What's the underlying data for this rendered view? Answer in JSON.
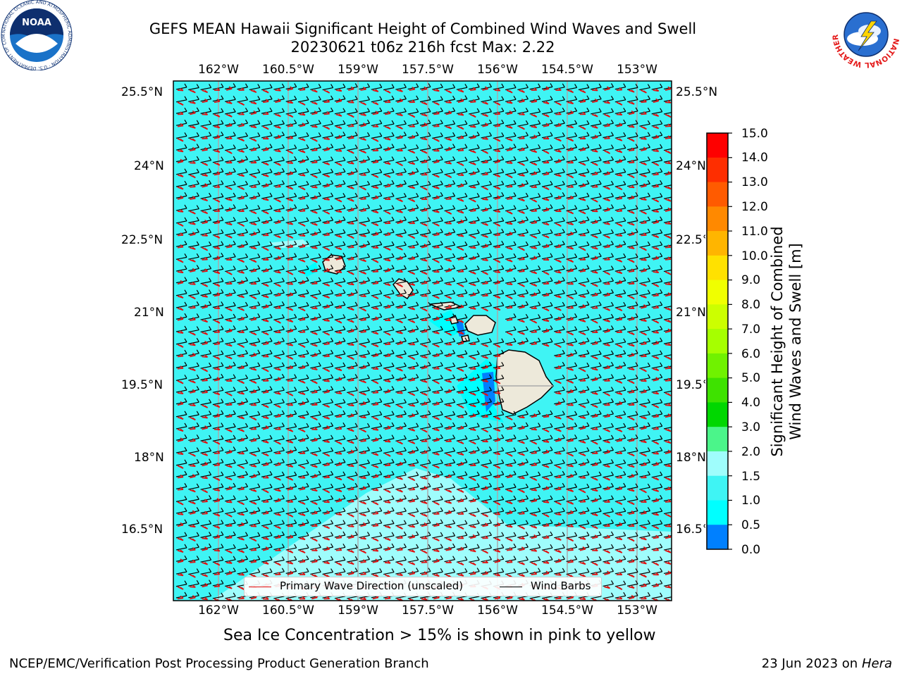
{
  "header": {
    "title_line1": "GEFS MEAN Hawaii Significant Height of Combined Wind Waves and Swell",
    "title_line2": "20230621 t06z 216h fcst   Max: 2.22"
  },
  "map": {
    "lon_ticks": [
      "162°W",
      "160.5°W",
      "159°W",
      "157.5°W",
      "156°W",
      "154.5°W",
      "153°W"
    ],
    "lat_ticks": [
      "25.5°N",
      "24°N",
      "22.5°N",
      "21°N",
      "19.5°N",
      "18°N",
      "16.5°N"
    ],
    "ocean_color": "#3ff4f4",
    "land_color": "#ede9da",
    "wave_arrow_color": "#e01010",
    "wind_barb_color": "#000000"
  },
  "colorbar": {
    "title_line1": "Significant Height of Combined",
    "title_line2": "Wind Waves and Swell [m]",
    "labels": [
      "15.0",
      "14.0",
      "13.0",
      "12.0",
      "11.0",
      "10.0",
      "9.0",
      "8.0",
      "7.0",
      "6.0",
      "5.0",
      "4.0",
      "3.0",
      "2.0",
      "1.5",
      "1.0",
      "0.5",
      "0.0"
    ],
    "colors": [
      "#fe0000",
      "#fe2e00",
      "#ff5b00",
      "#ff8900",
      "#ffb500",
      "#ffe100",
      "#f0ff00",
      "#ccff00",
      "#a6ff00",
      "#70f200",
      "#3ee200",
      "#00d700",
      "#4bf58a",
      "#9ffdfc",
      "#3ff4f4",
      "#00ffff",
      "#0080ff",
      "#0000ff"
    ]
  },
  "legend": {
    "wave_label": "Primary Wave Direction (unscaled)",
    "wind_label": "Wind Barbs"
  },
  "footer": {
    "note": "Sea Ice Concentration > 15% is shown in pink to yellow",
    "left": "NCEP/EMC/Verification Post Processing Product Generation Branch",
    "date": "23 Jun 2023 on",
    "machine": "Hera"
  },
  "logos": {
    "noaa": "NOAA",
    "noaa_ring": "NATIONAL OCEANIC AND ATMOSPHERIC ADMINISTRATION · U.S. DEPARTMENT OF COMMERCE",
    "nws": "NATIONAL WEATHER SERVICE"
  }
}
